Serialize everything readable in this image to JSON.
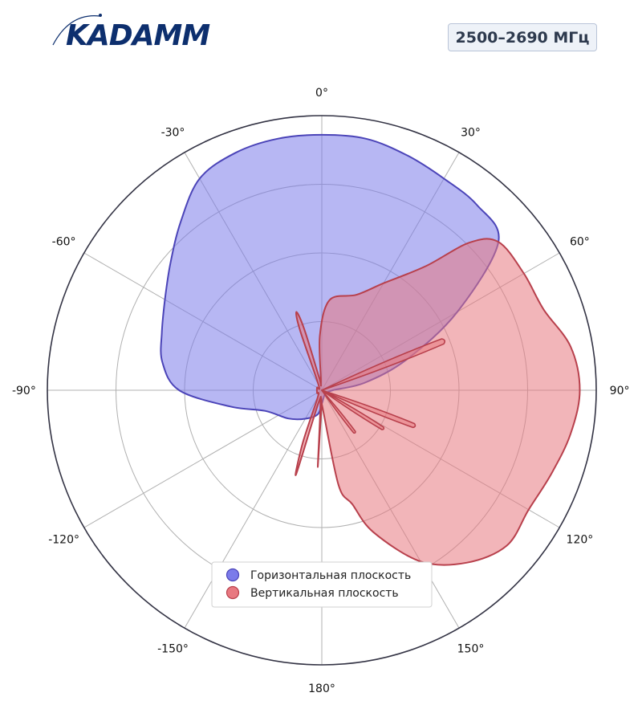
{
  "header": {
    "logo_text": "KADAMM",
    "frequency_label": "2500–2690 МГц"
  },
  "colors": {
    "horizontal_fill": "#7b7bea",
    "horizontal_line": "#4b44b8",
    "vertical_fill": "#e87880",
    "vertical_line": "#b8404c",
    "logo": "#0d2f6e",
    "axis": "#333344",
    "grid": "#b0b0b0"
  },
  "chart_data": {
    "type": "polar-area",
    "theta_direction": "clockwise",
    "theta_zero": "top",
    "r_range": [
      0,
      1
    ],
    "r_gridlines": [
      0.25,
      0.5,
      0.75,
      1.0
    ],
    "theta_ticks": [
      0,
      30,
      60,
      90,
      120,
      150,
      180,
      -150,
      -120,
      -90,
      -60,
      -30
    ],
    "theta_tick_labels": [
      "0°",
      "30°",
      "60°",
      "90°",
      "120°",
      "150°",
      "180°",
      "-150°",
      "-120°",
      "-90°",
      "-60°",
      "-30°"
    ],
    "grid": true,
    "legend_position": "bottom-center",
    "series": [
      {
        "name": "Горизонтальная плоскость",
        "color_key": "horizontal",
        "points": [
          [
            0,
            0.93
          ],
          [
            10,
            0.93
          ],
          [
            20,
            0.91
          ],
          [
            30,
            0.89
          ],
          [
            40,
            0.88
          ],
          [
            50,
            0.84
          ],
          [
            60,
            0.57
          ],
          [
            70,
            0.33
          ],
          [
            80,
            0.16
          ],
          [
            90,
            0.04
          ],
          [
            120,
            0.02
          ],
          [
            150,
            0.02
          ],
          [
            180,
            0.05
          ],
          [
            -170,
            0.09
          ],
          [
            -150,
            0.12
          ],
          [
            -130,
            0.16
          ],
          [
            -110,
            0.22
          ],
          [
            -100,
            0.34
          ],
          [
            -90,
            0.52
          ],
          [
            -80,
            0.59
          ],
          [
            -70,
            0.62
          ],
          [
            -60,
            0.66
          ],
          [
            -50,
            0.72
          ],
          [
            -40,
            0.8
          ],
          [
            -30,
            0.89
          ],
          [
            -20,
            0.92
          ],
          [
            -10,
            0.93
          ]
        ]
      },
      {
        "name": "Вертикальная плоскость",
        "color_key": "vertical",
        "points": [
          [
            -30,
            0.025
          ],
          [
            -20,
            0.23
          ],
          [
            -18,
            0.3
          ],
          [
            -16,
            0.23
          ],
          [
            -12,
            0.05
          ],
          [
            -6,
            0.03
          ],
          [
            -2,
            0.2
          ],
          [
            5,
            0.33
          ],
          [
            20,
            0.37
          ],
          [
            30,
            0.45
          ],
          [
            40,
            0.59
          ],
          [
            45,
            0.76
          ],
          [
            50,
            0.84
          ],
          [
            60,
            0.85
          ],
          [
            70,
            0.86
          ],
          [
            80,
            0.92
          ],
          [
            90,
            0.94
          ],
          [
            100,
            0.92
          ],
          [
            110,
            0.89
          ],
          [
            120,
            0.87
          ],
          [
            130,
            0.88
          ],
          [
            140,
            0.82
          ],
          [
            150,
            0.72
          ],
          [
            160,
            0.55
          ],
          [
            165,
            0.43
          ],
          [
            170,
            0.35
          ],
          [
            178,
            0.06
          ],
          [
            181,
            0.06
          ],
          [
            183,
            0.28
          ],
          [
            185,
            0.06
          ],
          [
            195,
            0.05
          ],
          [
            197,
            0.32
          ],
          [
            200,
            0.2
          ],
          [
            210,
            0.03
          ],
          [
            240,
            0.02
          ],
          [
            300,
            0.02
          ]
        ]
      }
    ],
    "lobes": [
      {
        "series": "Вертикальная плоскость",
        "angle": 68,
        "r": 0.49
      },
      {
        "series": "Вертикальная плоскость",
        "angle": 111,
        "r": 0.37
      },
      {
        "series": "Вертикальная плоскость",
        "angle": 122,
        "r": 0.27
      },
      {
        "series": "Вертикальная плоскость",
        "angle": 142,
        "r": 0.2
      }
    ]
  }
}
